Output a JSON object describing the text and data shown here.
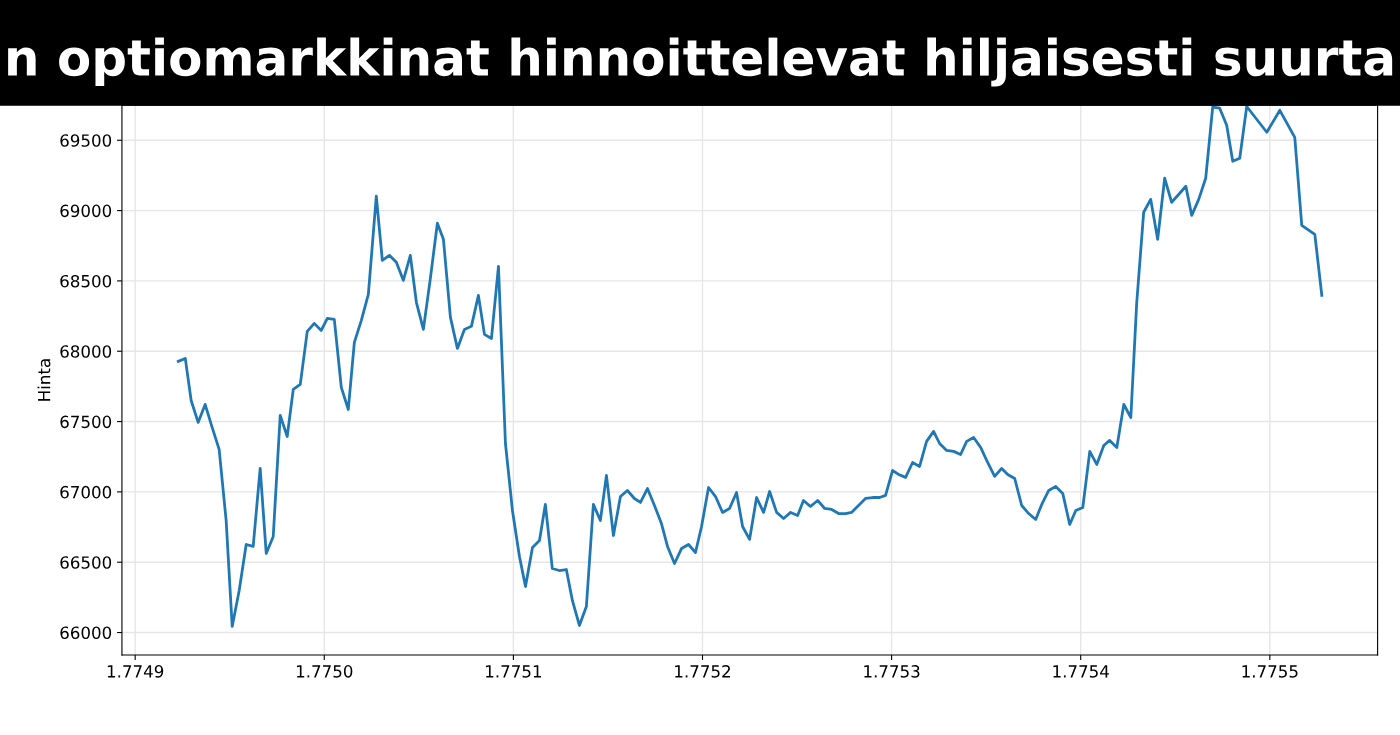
{
  "chart_data": {
    "type": "line",
    "title": "n optiomarkkinat hinnoittelevat hiljaisesti suurta",
    "ylabel": "Hinta",
    "x": [
      1.7749228,
      1.7749265,
      1.7749296,
      1.7749333,
      1.774937,
      1.7749407,
      1.7749444,
      1.7749481,
      1.7749513,
      1.774955,
      1.7749587,
      1.7749624,
      1.7749661,
      1.7749693,
      1.774973,
      1.7749767,
      1.7749804,
      1.7749836,
      1.7749873,
      1.774991,
      1.7749947,
      1.7749984,
      1.7750016,
      1.7750053,
      1.775009,
      1.7750127,
      1.7750159,
      1.7750196,
      1.7750233,
      1.7750275,
      1.7750307,
      1.7750344,
      1.7750381,
      1.7750418,
      1.7750455,
      1.7750487,
      1.7750524,
      1.7750561,
      1.7750598,
      1.775063,
      1.7750667,
      1.7750704,
      1.7750741,
      1.7750778,
      1.7750815,
      1.7750847,
      1.7750884,
      1.7750921,
      1.7750958,
      1.7750995,
      1.7751032,
      1.7751064,
      1.7751101,
      1.7751138,
      1.7751169,
      1.7751206,
      1.7751243,
      1.775128,
      1.7751312,
      1.7751349,
      1.7751386,
      1.7751423,
      1.775146,
      1.7751492,
      1.7751529,
      1.7751566,
      1.7751603,
      1.775164,
      1.7751672,
      1.7751709,
      1.7751746,
      1.7751783,
      1.7751815,
      1.7751852,
      1.7751889,
      1.7751926,
      1.7751963,
      1.7751995,
      1.7752032,
      1.7752069,
      1.7752106,
      1.7752143,
      1.775218,
      1.7752212,
      1.7752249,
      1.7752286,
      1.7752323,
      1.7752355,
      1.7752392,
      1.7752429,
      1.7752466,
      1.7752503,
      1.7752534,
      1.7752571,
      1.7752609,
      1.7752646,
      1.7752683,
      1.775272,
      1.7752757,
      1.7752788,
      1.7752825,
      1.7752862,
      1.77529,
      1.7752937,
      1.7752968,
      1.7753005,
      1.7753037,
      1.7753074,
      1.7753111,
      1.7753148,
      1.7753185,
      1.7753222,
      1.7753254,
      1.7753291,
      1.7753328,
      1.7753365,
      1.7753397,
      1.7753434,
      1.7753471,
      1.7753508,
      1.7753545,
      1.7753582,
      1.7753614,
      1.7753651,
      1.7753688,
      1.7753725,
      1.7753762,
      1.7753794,
      1.7753831,
      1.7753868,
      1.7753905,
      1.7753942,
      1.7753974,
      1.7754011,
      1.7754048,
      1.7754085,
      1.7754122,
      1.7754153,
      1.7754191,
      1.7754228,
      1.7754265,
      1.7754296,
      1.7754333,
      1.775437,
      1.7754407,
      1.7754444,
      1.7754481,
      1.7754519,
      1.7754556,
      1.7754587,
      1.7754624,
      1.7754661,
      1.7754698,
      1.7754735,
      1.7754772,
      1.7754804,
      1.7754841,
      1.7754878,
      1.7754984,
      1.7755053,
      1.7755132,
      1.7755169,
      1.7755238,
      1.7755275
    ],
    "series": [
      {
        "color": "#1f77b4",
        "values": [
          67928,
          67949,
          67650,
          67494,
          67622,
          67458,
          67302,
          66797,
          66043,
          66299,
          66626,
          66612,
          67167,
          66562,
          66683,
          67544,
          67394,
          67729,
          67764,
          68141,
          68198,
          68148,
          68234,
          68227,
          67743,
          67586,
          68063,
          68219,
          68404,
          69102,
          68646,
          68682,
          68632,
          68504,
          68682,
          68348,
          68155,
          68518,
          68910,
          68796,
          68241,
          68020,
          68155,
          68177,
          68397,
          68120,
          68091,
          68604,
          67344,
          66868,
          66541,
          66327,
          66605,
          66654,
          66911,
          66455,
          66441,
          66448,
          66228,
          66050,
          66185,
          66911,
          66797,
          67117,
          66690,
          66967,
          67010,
          66953,
          66925,
          67024,
          66903,
          66775,
          66612,
          66491,
          66597,
          66626,
          66569,
          66754,
          67031,
          66967,
          66854,
          66882,
          66996,
          66754,
          66662,
          66960,
          66854,
          67003,
          66854,
          66811,
          66854,
          66832,
          66939,
          66896,
          66939,
          66882,
          66875,
          66846,
          66846,
          66854,
          66903,
          66953,
          66960,
          66960,
          66975,
          67152,
          67124,
          67103,
          67209,
          67181,
          67359,
          67430,
          67344,
          67295,
          67288,
          67266,
          67359,
          67387,
          67316,
          67209,
          67110,
          67167,
          67124,
          67095,
          66903,
          66846,
          66804,
          66911,
          67010,
          67039,
          66989,
          66768,
          66868,
          66889,
          67288,
          67195,
          67330,
          67366,
          67316,
          67622,
          67529,
          68340,
          68988,
          69080,
          68796,
          69230,
          69059,
          69116,
          69173,
          68966,
          69080,
          69230,
          69735,
          69728,
          69607,
          69351,
          69372,
          69740,
          69557,
          69713,
          69521,
          68895,
          68831,
          68397
        ]
      }
    ],
    "xlim": [
      1.774893,
      1.775557
    ],
    "ylim": [
      65840,
      69750
    ],
    "xticks": [
      1.7749,
      {
        "value": 1.775,
        "label": "1.7750"
      },
      1.7751,
      1.7752,
      1.7753,
      1.7754,
      1.7755
    ],
    "yticks": [
      66000,
      66500,
      67000,
      67500,
      68000,
      68500,
      69000,
      69500
    ],
    "grid": true
  }
}
